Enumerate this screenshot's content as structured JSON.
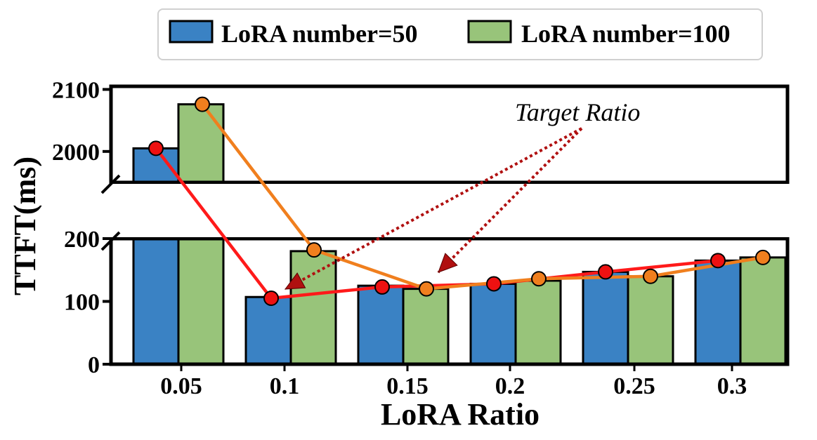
{
  "chart_data": {
    "type": "bar",
    "title": "",
    "xlabel": "LoRA Ratio",
    "ylabel": "TTFT(ms)",
    "categories": [
      "0.05",
      "0.1",
      "0.15",
      "0.2",
      "0.25",
      "0.3"
    ],
    "y_ticks_lower": [
      "0",
      "100",
      "200"
    ],
    "y_ticks_upper": [
      "2000",
      "2100"
    ],
    "ylim_lower": [
      0,
      200
    ],
    "ylim_upper": [
      1950,
      2105
    ],
    "broken_axis": true,
    "series": [
      {
        "name": "LoRA number=50",
        "color": "#3a82c4",
        "line_color": "#ff1a1a",
        "marker_color": "#ee1111",
        "values": [
          2005,
          107,
          125,
          128,
          147,
          165
        ],
        "line_values": [
          2005,
          105,
          123,
          128,
          147,
          165
        ]
      },
      {
        "name": "LoRA number=100",
        "color": "#98c47a",
        "line_color": "#f07f1e",
        "marker_color": "#f07f1e",
        "values": [
          2076,
          180,
          120,
          133,
          140,
          170
        ],
        "line_values": [
          2076,
          182,
          120,
          136,
          140,
          170
        ]
      }
    ],
    "legend_position": "top-center",
    "annotation": {
      "text": "Target Ratio",
      "arrow_color": "#b01010",
      "targets": [
        "0.1",
        "0.15"
      ]
    }
  }
}
